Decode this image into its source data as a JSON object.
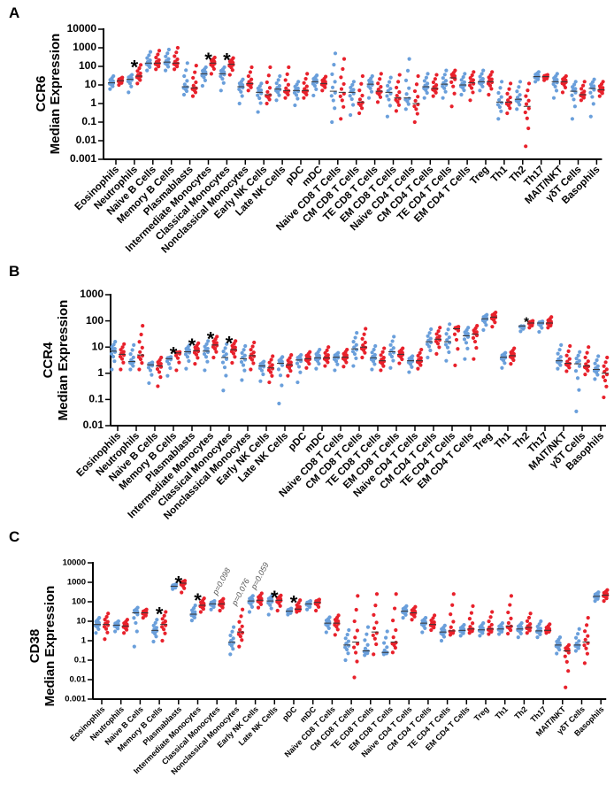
{
  "colors": {
    "blue": "#6a9fdb",
    "red": "#e8212b",
    "median": "#333333"
  },
  "chart_data": [
    {
      "type": "scatter",
      "panel": "A",
      "ylabel": [
        "CCR6",
        "Median  Expression"
      ],
      "yscale": "log",
      "ylim": [
        0.001,
        10000
      ],
      "yticks": [
        "10000",
        "1000",
        "100",
        "10",
        "1",
        "0.1",
        "0.01",
        "0.001"
      ],
      "categories": [
        "Eosinophils",
        "Neutrophils",
        "Naive B Cells",
        "Memory B Cells",
        "Plasmablasts",
        "Intermediate Monocytes",
        "Classical Monocytes",
        "Nonclassical Monocytes",
        "Early NK Cells",
        "Late NK Cells",
        "pDC",
        "mDC",
        "Naive CD8 T Cells",
        "CM CD8 T Cells",
        "TE CD8 T Cells",
        "EM CD8 T Cells",
        "Naive CD4 T Cells",
        "CM CD4 T Cells",
        "TE CD4 T Cells",
        "EM CD4 T Cells",
        "Treg",
        "Th1",
        "Th2",
        "Th17",
        "MAIT/NKT",
        "γδT Cells",
        "Basophils"
      ],
      "series": [
        {
          "color": "blue",
          "median": [
            13,
            20,
            150,
            170,
            8,
            40,
            40,
            8,
            4,
            6,
            5,
            15,
            4.6,
            4,
            11,
            4,
            2,
            8,
            11,
            10,
            15,
            1.2,
            1.7,
            28,
            15,
            4.6,
            6.5
          ],
          "min": [
            6,
            4,
            60,
            60,
            3,
            9,
            5,
            1,
            0.35,
            1.5,
            0.8,
            2.7,
            0.1,
            0.24,
            2,
            0.2,
            0.5,
            2,
            2,
            3,
            5,
            0.15,
            0.5,
            15,
            2,
            0.15,
            0.2
          ],
          "max": [
            30,
            35,
            600,
            800,
            150,
            90,
            90,
            20,
            12,
            30,
            15,
            33,
            500,
            15,
            30,
            25,
            250,
            40,
            60,
            40,
            60,
            15,
            15,
            50,
            40,
            15,
            20
          ]
        },
        {
          "color": "red",
          "median": [
            17,
            30,
            150,
            150,
            7,
            150,
            130,
            12,
            3,
            5,
            5,
            12,
            4,
            1.2,
            4.6,
            2,
            1,
            6.5,
            24,
            13,
            15,
            1.2,
            0.7,
            28,
            15,
            3,
            5.5
          ],
          "min": [
            10,
            12,
            70,
            70,
            2.5,
            40,
            35,
            5,
            1,
            2,
            2,
            5,
            0.15,
            0.3,
            1.2,
            0.4,
            0.1,
            2.5,
            0.7,
            1.5,
            3,
            0.3,
            0.005,
            18,
            4,
            1.5,
            2.5
          ],
          "max": [
            25,
            120,
            700,
            1000,
            110,
            300,
            280,
            90,
            90,
            90,
            40,
            28,
            250,
            30,
            40,
            35,
            30,
            35,
            60,
            50,
            50,
            12,
            12,
            35,
            30,
            15,
            15
          ]
        }
      ],
      "annotations": [
        {
          "category": 1,
          "text": "*",
          "kind": "star"
        },
        {
          "category": 5,
          "text": "*",
          "kind": "star"
        },
        {
          "category": 6,
          "text": "*",
          "kind": "star"
        }
      ]
    },
    {
      "type": "scatter",
      "panel": "B",
      "ylabel": [
        "CCR4",
        "Median  Expression"
      ],
      "yscale": "log",
      "ylim": [
        0.01,
        1000
      ],
      "yticks": [
        "1000",
        "100",
        "10",
        "1",
        "0.1",
        "0.01"
      ],
      "categories": [
        "Eosinophils",
        "Neutrophils",
        "Naive B Cells",
        "Memory B Cells",
        "Plasmablasts",
        "Intermediate Monocytes",
        "Classical Monocytes",
        "Nonclassical Monocytes",
        "Early NK Cells",
        "Late NK Cells",
        "pDC",
        "mDC",
        "Naive CD8 T Cells",
        "CM CD8 T Cells",
        "TE CD8 T Cells",
        "EM CD8 T Cells",
        "Naive CD4 T Cells",
        "CM CD4 T Cells",
        "TE CD4 T Cells",
        "EM CD4 T Cells",
        "Treg",
        "Th1",
        "Th2",
        "Th17",
        "MAIT/NKT",
        "γδT Cells",
        "Basophils"
      ],
      "series": [
        {
          "color": "blue",
          "median": [
            7,
            2.8,
            2.1,
            3.6,
            6.6,
            7,
            4,
            3.6,
            1.9,
            2.4,
            3.2,
            3.9,
            4.1,
            8.5,
            3.9,
            6.6,
            3,
            16,
            16,
            27,
            120,
            4.1,
            64,
            83,
            3,
            2.3,
            1.4
          ],
          "min": [
            1.4,
            1.4,
            0.42,
            0.8,
            1.5,
            1.3,
            0.22,
            0.55,
            0.5,
            0.07,
            0.45,
            1.5,
            1.3,
            1.9,
            1.4,
            1.6,
            1.1,
            4,
            3,
            3.5,
            45,
            1.6,
            40,
            38,
            1.5,
            0.035,
            0.6
          ],
          "max": [
            16,
            12,
            2.6,
            4.2,
            12,
            17,
            13,
            11,
            2.8,
            4.2,
            5,
            8,
            6,
            35,
            11,
            25,
            4.5,
            48,
            75,
            55,
            170,
            6,
            55,
            95,
            12,
            6.5,
            4.5
          ]
        },
        {
          "color": "red",
          "median": [
            5.3,
            5,
            1.9,
            6,
            7.3,
            12,
            8,
            4.7,
            1.6,
            2.1,
            3.6,
            3.9,
            4.1,
            10,
            3,
            5.3,
            3,
            20,
            50,
            31,
            140,
            4.7,
            83,
            83,
            2.4,
            1.9,
            1
          ],
          "min": [
            1.4,
            1.4,
            0.32,
            1.3,
            2.3,
            4,
            2.5,
            1.4,
            0.45,
            0.8,
            1.6,
            1.9,
            1.8,
            4,
            1.3,
            2.4,
            1.5,
            5.5,
            2,
            3.5,
            60,
            2.3,
            55,
            55,
            1.2,
            0.9,
            0.12
          ],
          "max": [
            13,
            65,
            4,
            6.5,
            14,
            25,
            17,
            15,
            4.5,
            5,
            6.5,
            10,
            8,
            50,
            9,
            9,
            8,
            55,
            60,
            65,
            210,
            9,
            100,
            140,
            11,
            10,
            4
          ]
        }
      ],
      "annotations": [
        {
          "category": 3,
          "text": "*",
          "kind": "star"
        },
        {
          "category": 4,
          "text": "*",
          "kind": "star"
        },
        {
          "category": 5,
          "text": "*",
          "kind": "star"
        },
        {
          "category": 6,
          "text": "*",
          "kind": "star"
        },
        {
          "category": 22,
          "text": "*",
          "kind": "small-star"
        }
      ]
    },
    {
      "type": "scatter",
      "panel": "C",
      "ylabel": [
        "CD38",
        "Median  Expression"
      ],
      "yscale": "log",
      "ylim": [
        0.001,
        10000
      ],
      "yticks": [
        "10000",
        "1000",
        "100",
        "10",
        "1",
        "0.1",
        "0.01",
        "0.001"
      ],
      "categories": [
        "Eosinophils",
        "Neutrophils",
        "Naive B Cells",
        "Memory B Cells",
        "Plasmablasts",
        "Intermediate Monocytes",
        "Classical Monocytes",
        "Nonclassical Monocytes",
        "Early NK Cells",
        "Late NK Cells",
        "pDC",
        "mDC",
        "Naive CD8 T Cells",
        "CM CD8 T Cells",
        "TE CD8 T Cells",
        "EM CD8 T Cells",
        "Naive CD4 T Cells",
        "CM CD4 T Cells",
        "TE CD4 T Cells",
        "EM CD4 T Cells",
        "Treg",
        "Th1",
        "Th2",
        "Th17",
        "MAIT/NKT",
        "γδT Cells",
        "Basophils"
      ],
      "series": [
        {
          "color": "blue",
          "median": [
            6.8,
            6.3,
            27,
            3.4,
            630,
            23,
            78,
            0.84,
            110,
            110,
            33,
            78,
            8,
            0.6,
            0.3,
            0.25,
            33,
            8,
            2.8,
            3.4,
            3.6,
            4,
            4,
            3.2,
            0.6,
            0.6,
            190
          ],
          "min": [
            2.5,
            3,
            0.5,
            0.9,
            450,
            11,
            40,
            0.2,
            30,
            22,
            22,
            40,
            2.7,
            0.1,
            0.18,
            0.2,
            15,
            2.7,
            1,
            1.8,
            1.8,
            2.2,
            1.5,
            1.5,
            0.22,
            0.3,
            110
          ],
          "max": [
            15,
            10,
            50,
            12,
            800,
            65,
            110,
            5,
            200,
            200,
            45,
            110,
            16,
            3.5,
            5,
            3,
            60,
            15,
            6,
            6.5,
            8,
            8,
            8,
            10,
            1.5,
            4,
            310
          ]
        },
        {
          "color": "red",
          "median": [
            6.8,
            5.7,
            27,
            6.8,
            900,
            66,
            78,
            2.8,
            120,
            120,
            42,
            93,
            8,
            0.85,
            2.8,
            0.85,
            27,
            6.8,
            3.2,
            4,
            4,
            5.7,
            4.8,
            3.4,
            0.3,
            0.85,
            220
          ],
          "min": [
            1.2,
            2.5,
            15,
            1,
            300,
            30,
            35,
            0.5,
            50,
            35,
            30,
            35,
            2,
            0.013,
            0.2,
            0.25,
            12,
            3.5,
            2,
            2.5,
            2.2,
            2.3,
            2.5,
            2.5,
            0.004,
            0.07,
            110
          ],
          "max": [
            25,
            12,
            40,
            30,
            1200,
            150,
            140,
            40,
            270,
            210,
            120,
            130,
            20,
            200,
            250,
            250,
            55,
            20,
            250,
            60,
            30,
            200,
            25,
            7,
            0.6,
            15,
            400
          ]
        }
      ],
      "annotations": [
        {
          "category": 3,
          "text": "*",
          "kind": "star"
        },
        {
          "category": 4,
          "text": "*",
          "kind": "star"
        },
        {
          "category": 5,
          "text": "*",
          "kind": "star"
        },
        {
          "category": 6,
          "text": "p=0.098",
          "kind": "pvalue"
        },
        {
          "category": 7,
          "text": "p=0.076",
          "kind": "pvalue"
        },
        {
          "category": 8,
          "text": "p=0.059",
          "kind": "pvalue"
        },
        {
          "category": 9,
          "text": "*",
          "kind": "star"
        },
        {
          "category": 10,
          "text": "*",
          "kind": "star"
        }
      ]
    }
  ]
}
